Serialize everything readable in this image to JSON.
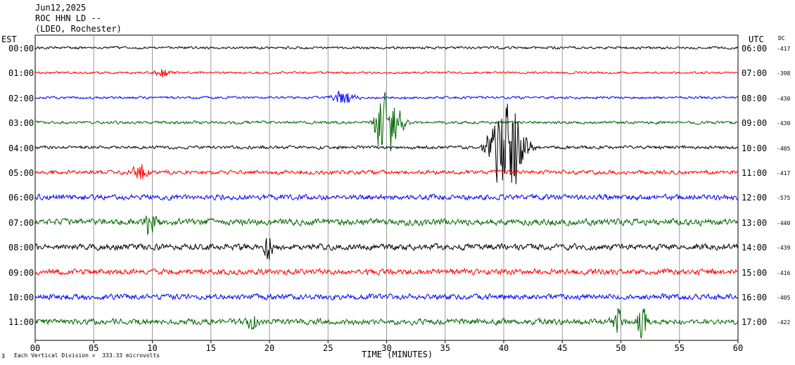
{
  "header": {
    "date": "Jun12,2025",
    "station": "ROC HHN LD --",
    "network": "(LDEO, Rochester)"
  },
  "labels": {
    "left_tz": "EST",
    "right_tz": "UTC",
    "dc": "DC",
    "xlabel": "TIME (MINUTES)",
    "scale_note": "Each Vertical Division =  333.33 microvolts",
    "logo_mark": "∃"
  },
  "chart_data": {
    "type": "line",
    "title": "",
    "xlabel": "TIME (MINUTES)",
    "ylabel": "",
    "xlim": [
      0,
      60
    ],
    "x_ticks": [
      "00",
      "05",
      "10",
      "15",
      "20",
      "25",
      "30",
      "35",
      "40",
      "45",
      "50",
      "55",
      "60"
    ],
    "grid": true,
    "colors": [
      "#000000",
      "#ff0000",
      "#0000ff",
      "#006600"
    ],
    "scale_microvolts_per_division": 333.33,
    "rows": [
      {
        "est": "00:00",
        "utc": "06:00",
        "dc": "-417",
        "color": "#000000",
        "noise_level": 0.1,
        "events": []
      },
      {
        "est": "01:00",
        "utc": "07:00",
        "dc": "-398",
        "color": "#ff0000",
        "noise_level": 0.09,
        "events": [
          {
            "minute": 10.9,
            "amplitude": 0.25,
            "duration": 0.7
          }
        ]
      },
      {
        "est": "02:00",
        "utc": "08:00",
        "dc": "-430",
        "color": "#0000ff",
        "noise_level": 0.1,
        "events": [
          {
            "minute": 26.3,
            "amplitude": 0.35,
            "duration": 1.0
          }
        ]
      },
      {
        "est": "03:00",
        "utc": "09:00",
        "dc": "-430",
        "color": "#006600",
        "noise_level": 0.12,
        "events": [
          {
            "minute": 29.6,
            "amplitude": 1.6,
            "duration": 0.6
          },
          {
            "minute": 30.5,
            "amplitude": 1.2,
            "duration": 1.0
          }
        ]
      },
      {
        "est": "04:00",
        "utc": "10:00",
        "dc": "-405",
        "color": "#000000",
        "noise_level": 0.13,
        "events": [
          {
            "minute": 39.4,
            "amplitude": 1.8,
            "duration": 0.8
          },
          {
            "minute": 40.6,
            "amplitude": 2.2,
            "duration": 1.2
          }
        ]
      },
      {
        "est": "05:00",
        "utc": "11:00",
        "dc": "-417",
        "color": "#ff0000",
        "noise_level": 0.16,
        "events": [
          {
            "minute": 8.9,
            "amplitude": 0.4,
            "duration": 0.8
          }
        ]
      },
      {
        "est": "06:00",
        "utc": "12:00",
        "dc": "-575",
        "color": "#0000ff",
        "noise_level": 0.22,
        "events": []
      },
      {
        "est": "07:00",
        "utc": "13:00",
        "dc": "-440",
        "color": "#006600",
        "noise_level": 0.26,
        "events": [
          {
            "minute": 9.8,
            "amplitude": 0.8,
            "duration": 0.5
          }
        ]
      },
      {
        "est": "08:00",
        "utc": "14:00",
        "dc": "-439",
        "color": "#000000",
        "noise_level": 0.24,
        "events": [
          {
            "minute": 19.9,
            "amplitude": 0.7,
            "duration": 0.4
          }
        ]
      },
      {
        "est": "09:00",
        "utc": "15:00",
        "dc": "-416",
        "color": "#ff0000",
        "noise_level": 0.23,
        "events": []
      },
      {
        "est": "10:00",
        "utc": "16:00",
        "dc": "-405",
        "color": "#0000ff",
        "noise_level": 0.22,
        "events": []
      },
      {
        "est": "11:00",
        "utc": "17:00",
        "dc": "-422",
        "color": "#006600",
        "noise_level": 0.24,
        "events": [
          {
            "minute": 18.5,
            "amplitude": 0.6,
            "duration": 0.4
          },
          {
            "minute": 49.7,
            "amplitude": 0.8,
            "duration": 0.4
          },
          {
            "minute": 51.8,
            "amplitude": 0.9,
            "duration": 0.4
          }
        ]
      }
    ]
  }
}
